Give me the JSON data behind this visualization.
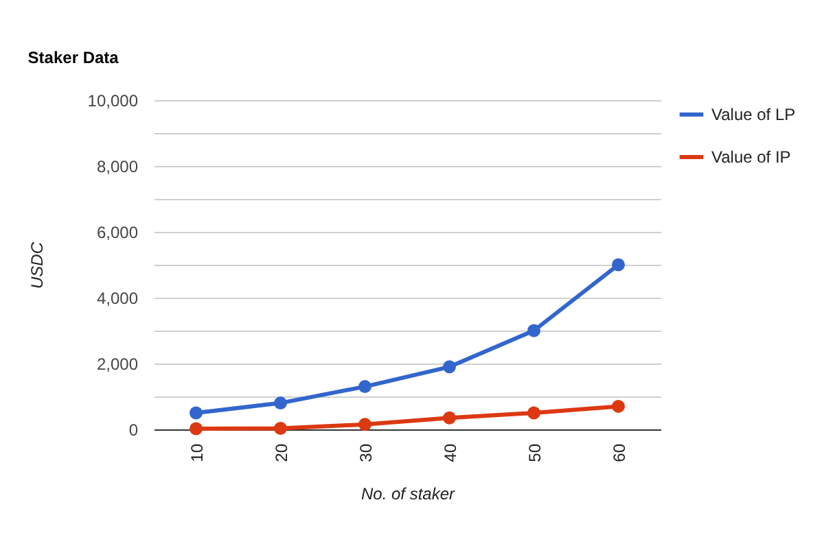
{
  "chart_data": {
    "type": "line",
    "title": "Staker Data",
    "xlabel": "No. of staker",
    "ylabel": "USDC",
    "categories": [
      "10",
      "20",
      "30",
      "40",
      "50",
      "60"
    ],
    "series": [
      {
        "name": "Value of LP",
        "color": "#3366cc",
        "values": [
          500,
          800,
          1300,
          1900,
          3000,
          5000
        ]
      },
      {
        "name": "Value of IP",
        "color": "#dc3912",
        "values": [
          20,
          30,
          150,
          350,
          500,
          700
        ]
      }
    ],
    "ylim": [
      0,
      10000
    ],
    "yticks": [
      0,
      {
        "value": 1000,
        "label": null
      },
      "2,000",
      {
        "value": 3000,
        "label": null
      },
      {
        "value": 4000,
        "label": "4,000"
      },
      {
        "value": 5000,
        "label": null
      },
      {
        "value": 6000,
        "label": "6,000"
      },
      {
        "value": 7000,
        "label": null
      },
      {
        "value": 8000,
        "label": "8,000"
      },
      {
        "value": 9000,
        "label": null
      },
      {
        "value": 10000,
        "label": "10,000"
      }
    ],
    "grid": "y",
    "legend": "top right",
    "marker": "circle",
    "line_style": "solid"
  }
}
